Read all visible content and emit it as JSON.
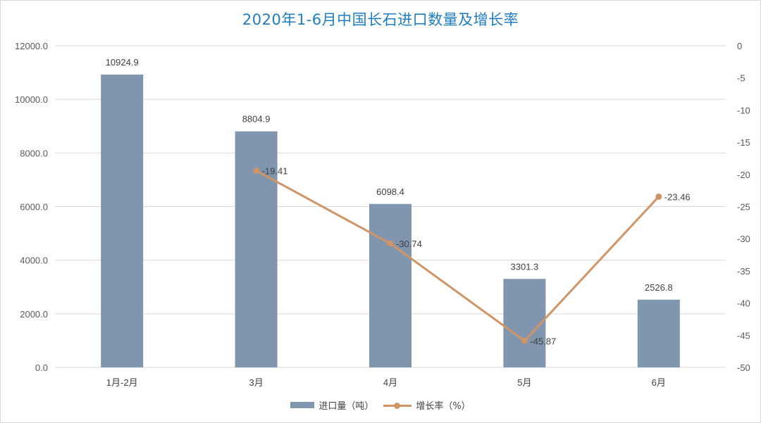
{
  "chart_data": {
    "type": "bar",
    "title": "2020年1-6月中国长石进口数量及增长率",
    "categories": [
      "1月-2月",
      "3月",
      "4月",
      "5月",
      "6月"
    ],
    "series": [
      {
        "name": "进口量（吨）",
        "type": "bar",
        "axis": "left",
        "color": "#7f96ae",
        "values": [
          10924.9,
          8804.9,
          6098.4,
          3301.3,
          2526.8
        ],
        "labels": [
          "10924.9",
          "8804.9",
          "6098.4",
          "3301.3",
          "2526.8"
        ]
      },
      {
        "name": "增长率（%）",
        "type": "line",
        "axis": "right",
        "color": "#d09566",
        "values": [
          null,
          -19.41,
          -30.74,
          -45.87,
          -23.46
        ],
        "labels": [
          null,
          "-19.41",
          "-30.74",
          "-45.87",
          "-23.46"
        ]
      }
    ],
    "y_left": {
      "ylim": [
        0,
        12000
      ],
      "ticks": [
        "0.0",
        "2000.0",
        "4000.0",
        "6000.0",
        "8000.0",
        "10000.0",
        "12000.0"
      ]
    },
    "y_right": {
      "ylim": [
        -50,
        0
      ],
      "ticks": [
        "0",
        "-5",
        "-10",
        "-15",
        "-20",
        "-25",
        "-30",
        "-35",
        "-40",
        "-45",
        "-50"
      ]
    },
    "grid": true,
    "legend": "bottom"
  }
}
